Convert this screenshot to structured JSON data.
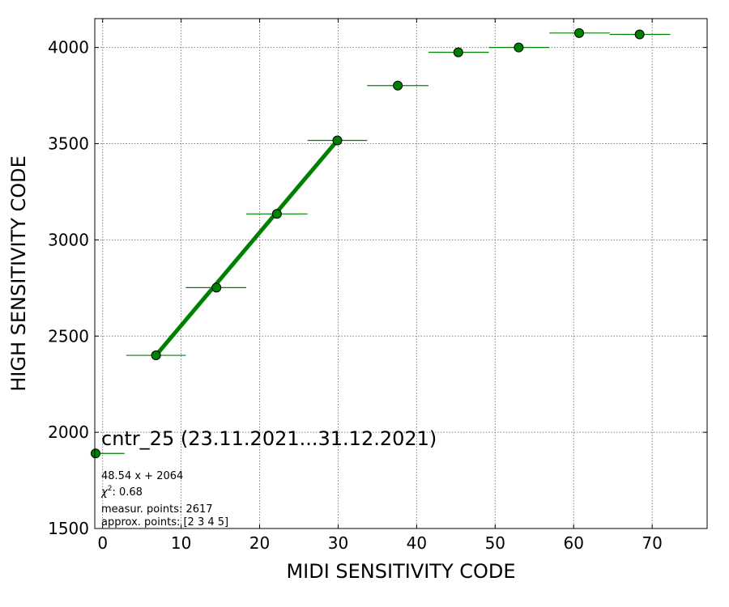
{
  "chart_data": {
    "type": "scatter",
    "title": "cntr_25 (23.11.2021...31.12.2021)",
    "xlabel": "MIDI SENSITIVITY CODE",
    "ylabel": "HIGH SENSITIVITY CODE",
    "xlim": [
      -1,
      77
    ],
    "ylim": [
      1500,
      4150
    ],
    "xticks": [
      0,
      10,
      20,
      30,
      40,
      50,
      60,
      70
    ],
    "yticks": [
      1500,
      2000,
      2500,
      3000,
      3500,
      4000
    ],
    "grid": true,
    "colors": {
      "points": "#008000",
      "fit": "#008000",
      "grid": "#808080"
    },
    "points": [
      {
        "x": -0.9,
        "y": 1890,
        "xerr_low": -0.9,
        "xerr_high": 2.8
      },
      {
        "x": 6.8,
        "y": 2400,
        "xerr_low": 3.0,
        "xerr_high": 10.6
      },
      {
        "x": 14.5,
        "y": 2752,
        "xerr_low": 10.6,
        "xerr_high": 18.3
      },
      {
        "x": 22.2,
        "y": 3135,
        "xerr_low": 18.3,
        "xerr_high": 26.1
      },
      {
        "x": 29.9,
        "y": 3517,
        "xerr_low": 26.1,
        "xerr_high": 33.7
      },
      {
        "x": 37.6,
        "y": 3802,
        "xerr_low": 33.7,
        "xerr_high": 41.5
      },
      {
        "x": 45.3,
        "y": 3975,
        "xerr_low": 41.5,
        "xerr_high": 49.2
      },
      {
        "x": 53.0,
        "y": 4000,
        "xerr_low": 49.2,
        "xerr_high": 56.9
      },
      {
        "x": 60.7,
        "y": 4075,
        "xerr_low": 56.9,
        "xerr_high": 64.6
      },
      {
        "x": 68.4,
        "y": 4068,
        "xerr_low": 64.6,
        "xerr_high": 72.3
      }
    ],
    "fit": {
      "x": [
        6.8,
        29.9
      ],
      "y": [
        2400,
        3517
      ]
    },
    "annotations": {
      "equation": "48.54 x + 2064",
      "chi2_label": "χ",
      "chi2_sup": "2",
      "chi2_value": ": 0.68",
      "measured": "measur. points: 2617",
      "approx": "approx. points: [2 3 4 5]"
    }
  }
}
